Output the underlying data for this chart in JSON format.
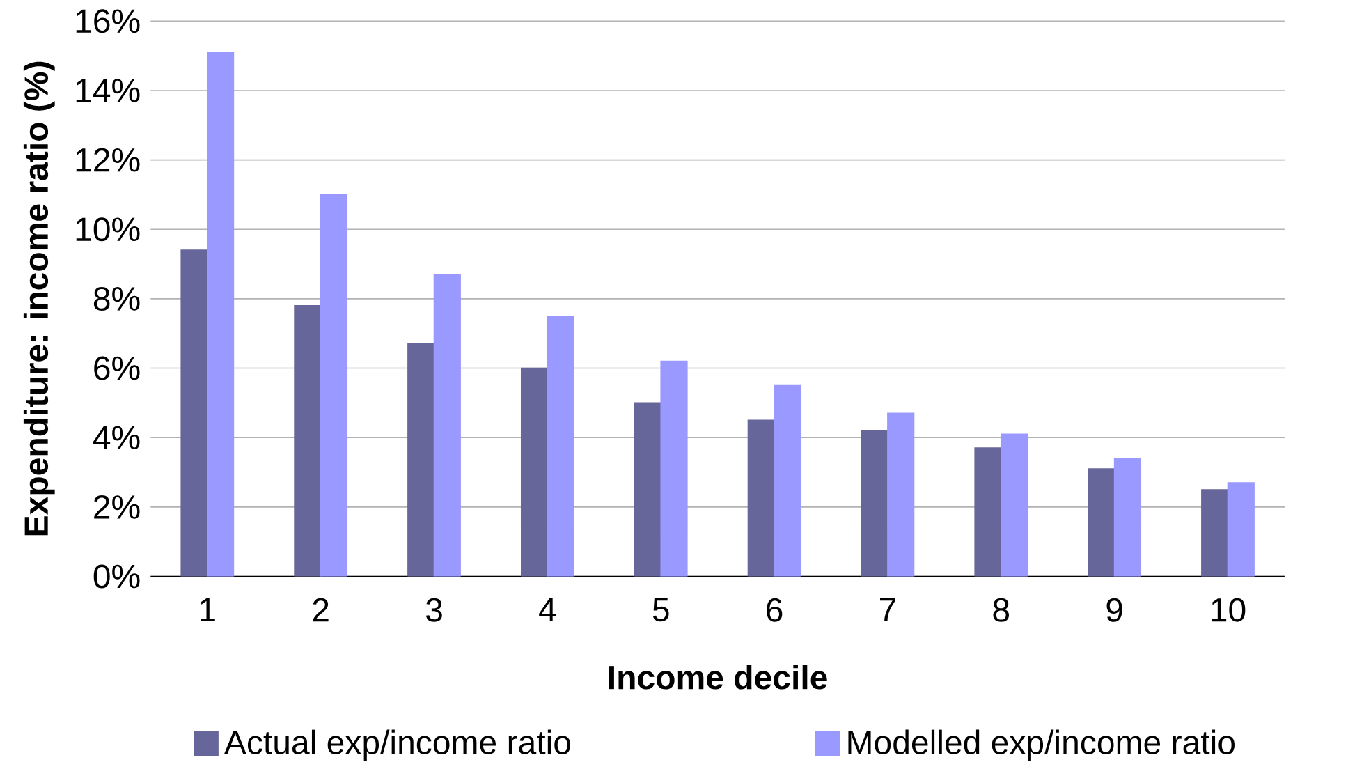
{
  "chart_data": {
    "type": "bar",
    "xlabel": "Income decile",
    "ylabel": "Expenditure: income ratio (%)",
    "categories": [
      "1",
      "2",
      "3",
      "4",
      "5",
      "6",
      "7",
      "8",
      "9",
      "10"
    ],
    "series": [
      {
        "name": "Actual exp/income ratio",
        "color": "#66669a",
        "values": [
          9.4,
          7.8,
          6.7,
          6.0,
          5.0,
          4.5,
          4.2,
          3.7,
          3.1,
          2.5
        ]
      },
      {
        "name": "Modelled exp/income ratio",
        "color": "#9999ff",
        "values": [
          15.1,
          11.0,
          8.7,
          7.5,
          6.2,
          5.5,
          4.7,
          4.1,
          3.4,
          2.7
        ]
      }
    ],
    "ylim": [
      0,
      16
    ],
    "yticks": [
      {
        "value": 0,
        "label": "0%"
      },
      {
        "value": 2,
        "label": "2%"
      },
      {
        "value": 4,
        "label": "4%"
      },
      {
        "value": 6,
        "label": "6%"
      },
      {
        "value": 8,
        "label": "8%"
      },
      {
        "value": 10,
        "label": "10%"
      },
      {
        "value": 12,
        "label": "12%"
      },
      {
        "value": 14,
        "label": "14%"
      },
      {
        "value": 16,
        "label": "16%"
      }
    ],
    "grid": "y",
    "legend": "bottom"
  }
}
